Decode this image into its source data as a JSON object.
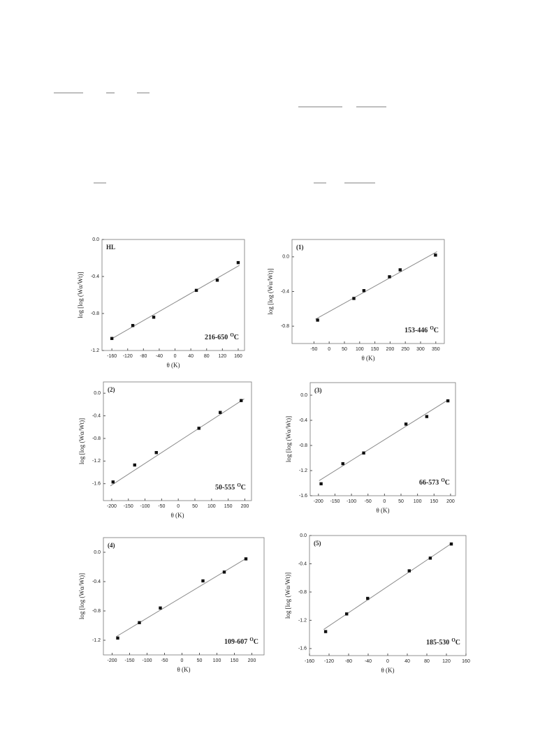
{
  "chart_data": [
    {
      "type": "scatter",
      "title": "HL",
      "annotation": {
        "text": "216-650",
        "sup": "O",
        "unit": "C"
      },
      "x_label": "θ (K)",
      "y_label": "log [log (Wα/Wt)]",
      "xlim": [
        -185,
        176
      ],
      "ylim": [
        -1.2,
        0
      ],
      "xticks": [
        -160,
        -120,
        -80,
        -40,
        0,
        40,
        80,
        120,
        160
      ],
      "yticks": [
        {
          "value": 0,
          "label": "0.0"
        },
        -0.4,
        -0.8,
        -1.2
      ],
      "x": [
        -160,
        -107,
        -54,
        54,
        107,
        160
      ],
      "values": [
        -1.07,
        -0.93,
        -0.84,
        -0.55,
        -0.44,
        -0.25
      ],
      "color": "#111111",
      "fit": {
        "x": [
          -163,
          163
        ],
        "values": [
          -1.08,
          -0.28
        ],
        "color": "#8a8a8a"
      }
    },
    {
      "type": "scatter",
      "title": "(1)",
      "annotation": {
        "text": "153-446",
        "sup": "O",
        "unit": "C"
      },
      "x_label": "θ (K)",
      "y_label": "log [log (Wα/Wt)]",
      "xlim": [
        -122,
        378
      ],
      "ylim": [
        -1.0,
        0.2
      ],
      "xticks": [
        -50,
        0,
        50,
        100,
        150,
        200,
        250,
        300,
        350
      ],
      "yticks": [
        {
          "value": 0,
          "label": "0.0"
        },
        -0.4,
        -0.8
      ],
      "x": [
        -38,
        81,
        114,
        198,
        233,
        349
      ],
      "values": [
        -0.73,
        -0.48,
        -0.39,
        -0.23,
        -0.15,
        0.02
      ],
      "color": "#111111",
      "fit": {
        "x": [
          -45,
          354
        ],
        "values": [
          -0.72,
          0.06
        ],
        "color": "#8a8a8a"
      }
    },
    {
      "type": "scatter",
      "title": "(2)",
      "annotation": {
        "text": "50-555",
        "sup": "O",
        "unit": "C"
      },
      "x_label": "θ (K)",
      "y_label": "log [log (Wα/Wt)]",
      "xlim": [
        -225,
        220
      ],
      "ylim": [
        -1.9,
        0.2
      ],
      "xticks": [
        -200,
        -150,
        -100,
        -50,
        0,
        50,
        100,
        150,
        200
      ],
      "yticks": [
        {
          "value": 0,
          "label": "0.0"
        },
        -0.4,
        -0.8,
        -1.2,
        -1.6
      ],
      "x": [
        -196,
        -131,
        -66,
        62,
        126,
        189
      ],
      "values": [
        -1.57,
        -1.27,
        -1.05,
        -0.62,
        -0.34,
        -0.13
      ],
      "color": "#111111",
      "fit": {
        "x": [
          -204,
          198
        ],
        "values": [
          -1.64,
          -0.1
        ],
        "color": "#8a8a8a"
      }
    },
    {
      "type": "scatter",
      "title": "(3)",
      "annotation": {
        "text": "66-573",
        "sup": "O",
        "unit": "C"
      },
      "x_label": "θ (K)",
      "y_label": "log [log (Wα/Wt)]",
      "xlim": [
        -225,
        215
      ],
      "ylim": [
        -1.6,
        0.2
      ],
      "xticks": [
        -200,
        -150,
        -100,
        -50,
        0,
        50,
        100,
        150,
        200
      ],
      "yticks": [
        {
          "value": 0,
          "label": "0.0"
        },
        -0.4,
        -0.8,
        -1.2,
        -1.6
      ],
      "x": [
        -192,
        -126,
        -63,
        65,
        128,
        192
      ],
      "values": [
        -1.41,
        -1.09,
        -0.92,
        -0.46,
        -0.34,
        -0.09
      ],
      "color": "#111111",
      "fit": {
        "x": [
          -198,
          194
        ],
        "values": [
          -1.36,
          -0.07
        ],
        "color": "#8a8a8a"
      }
    },
    {
      "type": "scatter",
      "title": "(4)",
      "annotation": {
        "text": "109-607",
        "sup": "O",
        "unit": "C"
      },
      "x_label": "θ (K)",
      "y_label": "log [log (Wα/Wt)]",
      "xlim": [
        -225,
        235
      ],
      "ylim": [
        -1.4,
        0.2
      ],
      "xticks": [
        -200,
        -150,
        -100,
        -50,
        0,
        50,
        100,
        150,
        200
      ],
      "yticks": [
        {
          "value": 0,
          "label": "0.0"
        },
        -0.4,
        -0.8,
        -1.2
      ],
      "x": [
        -184,
        -122,
        -62,
        60,
        121,
        183
      ],
      "values": [
        -1.17,
        -0.96,
        -0.76,
        -0.39,
        -0.27,
        -0.09
      ],
      "color": "#111111",
      "fit": {
        "x": [
          -188,
          185
        ],
        "values": [
          -1.15,
          -0.08
        ],
        "color": "#8a8a8a"
      }
    },
    {
      "type": "scatter",
      "title": "(5)",
      "annotation": {
        "text": "185-530",
        "sup": "O",
        "unit": "C"
      },
      "x_label": "θ (K)",
      "y_label": "log [log (Wα/Wt)]",
      "xlim": [
        -160,
        160
      ],
      "ylim": [
        -1.7,
        0
      ],
      "xticks": [
        -160,
        -120,
        -80,
        -40,
        0,
        40,
        80,
        120,
        160
      ],
      "yticks": [
        {
          "value": 0,
          "label": "0.0"
        },
        -0.4,
        -0.8,
        -1.2,
        -1.6
      ],
      "x": [
        -127,
        -84,
        -41,
        44,
        87,
        130
      ],
      "values": [
        -1.36,
        -1.11,
        -0.89,
        -0.5,
        -0.32,
        -0.12
      ],
      "color": "#111111",
      "fit": {
        "x": [
          -131,
          131
        ],
        "values": [
          -1.33,
          -0.11
        ],
        "color": "#8a8a8a"
      }
    }
  ]
}
